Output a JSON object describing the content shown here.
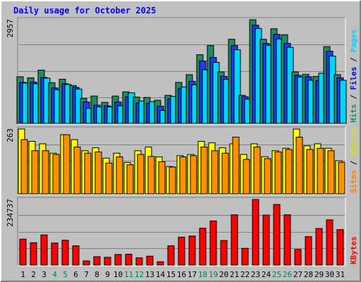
{
  "chart_data": {
    "type": "bar",
    "title": "Daily usage for October 2025",
    "categories": [
      "1",
      "2",
      "3",
      "4",
      "5",
      "6",
      "7",
      "8",
      "9",
      "10",
      "11",
      "12",
      "13",
      "14",
      "15",
      "16",
      "17",
      "18",
      "19",
      "20",
      "21",
      "22",
      "23",
      "24",
      "25",
      "26",
      "27",
      "28",
      "29",
      "30",
      "31"
    ],
    "weekend_days": [
      "4",
      "5",
      "11",
      "12",
      "18",
      "19",
      "25",
      "26"
    ],
    "grid": true,
    "panels": [
      {
        "id": "hits-files-pages",
        "max_label": "2957",
        "ymax": 2957,
        "labels": [
          "Hits",
          "Files",
          "Pages"
        ],
        "separator": " / ",
        "series": [
          {
            "name": "Hits",
            "color": "#218a60",
            "values": [
              1330,
              1300,
              1520,
              1160,
              1260,
              1080,
              710,
              780,
              600,
              780,
              900,
              750,
              740,
              660,
              800,
              1170,
              1390,
              1960,
              2220,
              1470,
              2400,
              800,
              2957,
              2400,
              2700,
              2530,
              1470,
              1400,
              1340,
              2190,
              1390
            ]
          },
          {
            "name": "Files",
            "color": "#1e3cff",
            "values": [
              1170,
              1180,
              1310,
              1010,
              1130,
              1030,
              610,
              520,
              500,
              610,
              760,
              580,
              570,
              490,
              700,
              1000,
              1200,
              1780,
              1880,
              1340,
              2220,
              760,
              2800,
              2280,
              2540,
              2280,
              1370,
              1330,
              1220,
              2060,
              1300
            ]
          },
          {
            "name": "Pages",
            "color": "#00d5ff",
            "values": [
              1150,
              1130,
              1290,
              960,
              1110,
              980,
              430,
              470,
              470,
              500,
              870,
              640,
              620,
              370,
              770,
              1040,
              1100,
              1530,
              1740,
              1260,
              2100,
              690,
              2710,
              2230,
              2410,
              2170,
              1320,
              1230,
              1430,
              1920,
              1230
            ]
          }
        ]
      },
      {
        "id": "sites-visits",
        "max_label": "263",
        "ymax": 263,
        "labels": [
          "Sites",
          "Visits"
        ],
        "separator": " / ",
        "series": [
          {
            "name": "Sites",
            "color": "#ffff00",
            "values": [
              263,
              213,
              203,
              165,
              240,
              220,
              175,
              187,
              145,
              165,
              127,
              175,
              190,
              150,
              111,
              155,
              160,
              213,
              207,
              187,
              203,
              160,
              203,
              151,
              175,
              185,
              263,
              195,
              203,
              185,
              134
            ]
          },
          {
            "name": "Visits",
            "color": "#ff9000",
            "values": [
              220,
              175,
              175,
              160,
              240,
              190,
              165,
              170,
              125,
              150,
              118,
              160,
              152,
              130,
              109,
              150,
              155,
              190,
              175,
              165,
              230,
              140,
              190,
              143,
              170,
              180,
              230,
              180,
              185,
              175,
              128
            ]
          }
        ]
      },
      {
        "id": "kbytes",
        "max_label": "234737",
        "ymax": 234737,
        "labels": [
          "KBytes"
        ],
        "separator": "",
        "series": [
          {
            "name": "KBytes",
            "color": "#ff0000",
            "values": [
              93000,
              80000,
              108000,
              79000,
              89000,
              69000,
              15000,
              30000,
              28000,
              38000,
              39000,
              26000,
              32000,
              12000,
              69000,
              100000,
              104000,
              132000,
              158000,
              88000,
              180000,
              60000,
              234737,
              179000,
              217000,
              180000,
              56000,
              102000,
              131000,
              162000,
              127000
            ]
          }
        ]
      }
    ]
  }
}
